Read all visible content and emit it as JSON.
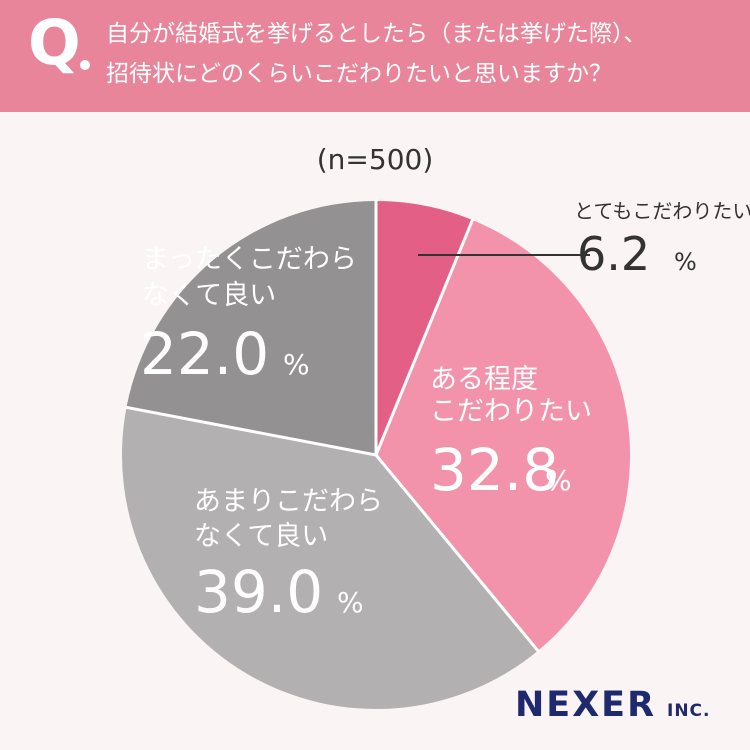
{
  "question": {
    "mark": "Q",
    "line1": "自分が結婚式を挙げるとしたら（または挙げた際）、",
    "line2": "招待状にどのくらいこだわりたいと思いますか？"
  },
  "sample_size": "(n=500)",
  "brand": {
    "name": "NEXER",
    "suffix": "INC."
  },
  "colors": {
    "header": "#e8859b",
    "slice_1": "#e35f86",
    "slice_2": "#f293ab",
    "slice_3": "#b2b0b1",
    "slice_4": "#939192",
    "brand": "#1f2a6e"
  },
  "chart_data": {
    "type": "pie",
    "start": "12 o'clock",
    "direction": "clockwise",
    "slices": [
      {
        "label_lines": [
          "とてもこだわりたい"
        ],
        "value": 6.2,
        "display": "6.2",
        "unit": "%",
        "color": "#e35f86"
      },
      {
        "label_lines": [
          "ある程度",
          "こだわりたい"
        ],
        "value": 32.8,
        "display": "32.8",
        "unit": "%",
        "color": "#f293ab"
      },
      {
        "label_lines": [
          "あまりこだわら",
          "なくて良い"
        ],
        "value": 39.0,
        "display": "39.0",
        "unit": "%",
        "color": "#b2b0b1"
      },
      {
        "label_lines": [
          "まったくこだわら",
          "なくて良い"
        ],
        "value": 22.0,
        "display": "22.0",
        "unit": "%",
        "color": "#939192"
      }
    ]
  }
}
